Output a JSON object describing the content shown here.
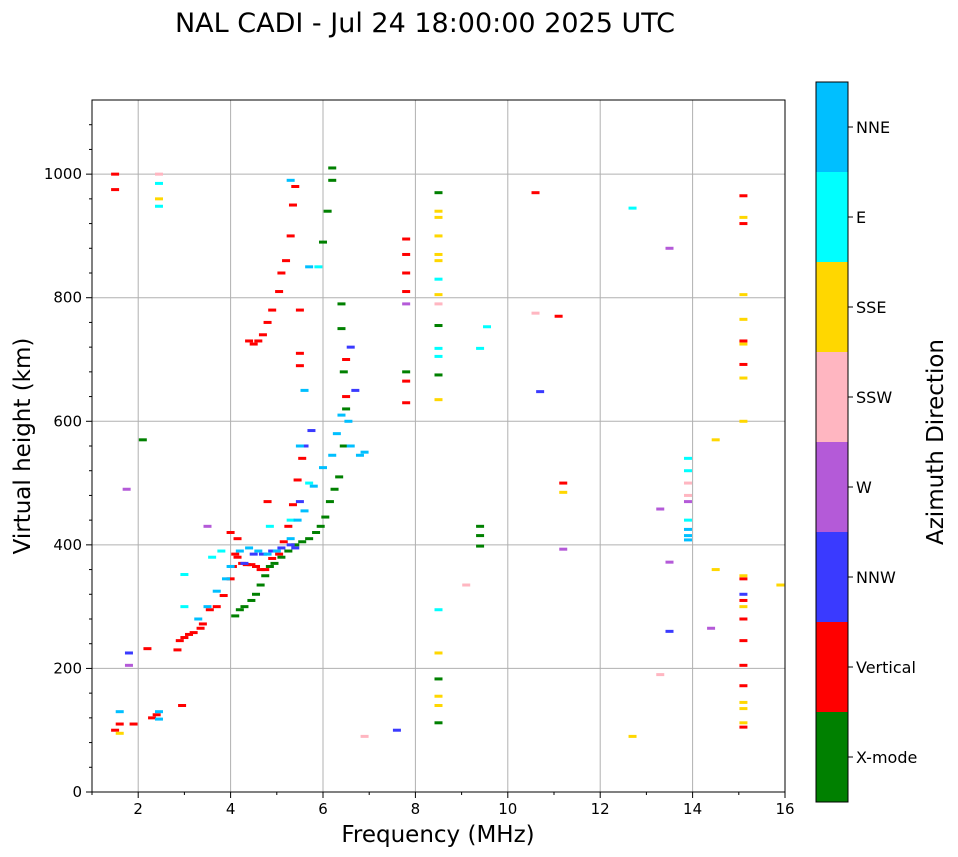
{
  "chart_data": {
    "type": "scatter",
    "title": "NAL CADI - Jul 24 18:00:00 2025 UTC",
    "xlabel": "Frequency (MHz)",
    "ylabel": "Virtual height (km)",
    "xlim": [
      1,
      16
    ],
    "ylim": [
      0,
      1120
    ],
    "x_ticks": [
      2,
      4,
      6,
      8,
      10,
      12,
      14,
      16
    ],
    "y_ticks": [
      0,
      200,
      400,
      600,
      800,
      1000
    ],
    "grid": true,
    "colorbar": {
      "label": "Azimuth Direction",
      "categories": [
        {
          "name": "X-mode",
          "color": "#008000"
        },
        {
          "name": "Vertical",
          "color": "#ff0000"
        },
        {
          "name": "NNW",
          "color": "#3a3aff"
        },
        {
          "name": "W",
          "color": "#b45ad8"
        },
        {
          "name": "SSW",
          "color": "#ffb6c1"
        },
        {
          "name": "SSE",
          "color": "#ffd700"
        },
        {
          "name": "E",
          "color": "#00ffff"
        },
        {
          "name": "NNE",
          "color": "#00bfff"
        }
      ]
    },
    "series": [
      {
        "name": "Vertical",
        "points": [
          [
            1.5,
            1000
          ],
          [
            1.5,
            975
          ],
          [
            1.5,
            100
          ],
          [
            1.6,
            110
          ],
          [
            1.9,
            110
          ],
          [
            2.3,
            120
          ],
          [
            2.4,
            125
          ],
          [
            2.2,
            232
          ],
          [
            2.85,
            230
          ],
          [
            2.9,
            245
          ],
          [
            3.0,
            250
          ],
          [
            3.1,
            255
          ],
          [
            3.2,
            258
          ],
          [
            3.35,
            265
          ],
          [
            3.4,
            272
          ],
          [
            3.55,
            295
          ],
          [
            3.7,
            300
          ],
          [
            3.85,
            318
          ],
          [
            4.0,
            345
          ],
          [
            4.05,
            365
          ],
          [
            4.1,
            385
          ],
          [
            4.15,
            380
          ],
          [
            4.25,
            370
          ],
          [
            4.35,
            368
          ],
          [
            4.45,
            368
          ],
          [
            4.55,
            365
          ],
          [
            4.65,
            360
          ],
          [
            4.75,
            360
          ],
          [
            4.9,
            378
          ],
          [
            5.05,
            385
          ],
          [
            5.15,
            405
          ],
          [
            5.25,
            430
          ],
          [
            5.35,
            465
          ],
          [
            5.45,
            505
          ],
          [
            5.55,
            540
          ],
          [
            4.4,
            730
          ],
          [
            4.5,
            725
          ],
          [
            4.6,
            730
          ],
          [
            4.7,
            740
          ],
          [
            4.8,
            760
          ],
          [
            4.9,
            780
          ],
          [
            5.05,
            810
          ],
          [
            5.1,
            840
          ],
          [
            5.2,
            860
          ],
          [
            5.3,
            900
          ],
          [
            5.35,
            950
          ],
          [
            5.4,
            980
          ],
          [
            5.5,
            710
          ],
          [
            5.5,
            690
          ],
          [
            5.5,
            780
          ],
          [
            6.5,
            640
          ],
          [
            6.5,
            700
          ],
          [
            7.8,
            630
          ],
          [
            7.8,
            665
          ],
          [
            7.8,
            810
          ],
          [
            7.8,
            840
          ],
          [
            7.8,
            870
          ],
          [
            7.8,
            895
          ],
          [
            10.6,
            970
          ],
          [
            11.1,
            770
          ],
          [
            11.2,
            500
          ],
          [
            15.1,
            965
          ],
          [
            15.1,
            920
          ],
          [
            15.1,
            730
          ],
          [
            15.1,
            692
          ],
          [
            15.1,
            345
          ],
          [
            15.1,
            310
          ],
          [
            15.1,
            280
          ],
          [
            15.1,
            245
          ],
          [
            15.1,
            205
          ],
          [
            15.1,
            172
          ],
          [
            15.1,
            105
          ],
          [
            4.8,
            470
          ],
          [
            4.0,
            420
          ],
          [
            4.15,
            410
          ],
          [
            2.95,
            140
          ]
        ]
      },
      {
        "name": "X-mode",
        "points": [
          [
            4.1,
            285
          ],
          [
            4.2,
            295
          ],
          [
            4.3,
            300
          ],
          [
            4.45,
            310
          ],
          [
            4.55,
            320
          ],
          [
            4.65,
            335
          ],
          [
            4.75,
            350
          ],
          [
            4.85,
            365
          ],
          [
            4.95,
            370
          ],
          [
            5.1,
            380
          ],
          [
            5.25,
            390
          ],
          [
            5.4,
            400
          ],
          [
            5.55,
            405
          ],
          [
            5.7,
            410
          ],
          [
            5.85,
            420
          ],
          [
            5.95,
            430
          ],
          [
            6.05,
            445
          ],
          [
            6.15,
            470
          ],
          [
            6.25,
            490
          ],
          [
            6.35,
            510
          ],
          [
            6.45,
            560
          ],
          [
            6.5,
            620
          ],
          [
            6.45,
            680
          ],
          [
            6.4,
            750
          ],
          [
            6.4,
            790
          ],
          [
            6.0,
            890
          ],
          [
            6.1,
            940
          ],
          [
            6.2,
            990
          ],
          [
            6.2,
            1010
          ],
          [
            2.1,
            570
          ],
          [
            7.8,
            680
          ],
          [
            8.5,
            970
          ],
          [
            8.5,
            755
          ],
          [
            8.5,
            675
          ],
          [
            8.5,
            183
          ],
          [
            8.5,
            112
          ],
          [
            9.4,
            430
          ],
          [
            9.4,
            415
          ],
          [
            9.4,
            398
          ]
        ]
      },
      {
        "name": "NNW",
        "points": [
          [
            1.8,
            225
          ],
          [
            4.3,
            370
          ],
          [
            4.5,
            385
          ],
          [
            4.7,
            385
          ],
          [
            4.9,
            390
          ],
          [
            5.1,
            395
          ],
          [
            5.3,
            400
          ],
          [
            5.5,
            470
          ],
          [
            5.6,
            560
          ],
          [
            5.75,
            585
          ],
          [
            6.6,
            720
          ],
          [
            6.7,
            650
          ],
          [
            10.7,
            648
          ],
          [
            13.5,
            260
          ],
          [
            15.1,
            320
          ],
          [
            7.6,
            100
          ],
          [
            5.4,
            395
          ]
        ]
      },
      {
        "name": "W",
        "points": [
          [
            1.8,
            205
          ],
          [
            1.75,
            490
          ],
          [
            3.5,
            430
          ],
          [
            7.8,
            790
          ],
          [
            11.2,
            393
          ],
          [
            13.3,
            458
          ],
          [
            13.5,
            880
          ],
          [
            13.5,
            372
          ],
          [
            14.4,
            265
          ],
          [
            13.9,
            470
          ]
        ]
      },
      {
        "name": "SSW",
        "points": [
          [
            2.45,
            1000
          ],
          [
            8.5,
            790
          ],
          [
            9.1,
            335
          ],
          [
            10.6,
            775
          ],
          [
            13.3,
            190
          ],
          [
            13.9,
            500
          ],
          [
            13.9,
            480
          ],
          [
            6.9,
            90
          ]
        ]
      },
      {
        "name": "SSE",
        "points": [
          [
            2.45,
            960
          ],
          [
            8.5,
            940
          ],
          [
            8.5,
            930
          ],
          [
            8.5,
            900
          ],
          [
            8.5,
            870
          ],
          [
            8.5,
            860
          ],
          [
            8.5,
            805
          ],
          [
            8.5,
            635
          ],
          [
            8.5,
            225
          ],
          [
            8.5,
            155
          ],
          [
            8.5,
            140
          ],
          [
            11.2,
            485
          ],
          [
            12.7,
            90
          ],
          [
            14.5,
            570
          ],
          [
            14.5,
            360
          ],
          [
            15.1,
            930
          ],
          [
            15.1,
            805
          ],
          [
            15.1,
            765
          ],
          [
            15.1,
            725
          ],
          [
            15.1,
            670
          ],
          [
            15.1,
            600
          ],
          [
            15.1,
            350
          ],
          [
            15.1,
            300
          ],
          [
            15.1,
            145
          ],
          [
            15.1,
            135
          ],
          [
            15.1,
            112
          ],
          [
            15.9,
            335
          ],
          [
            1.6,
            95
          ]
        ]
      },
      {
        "name": "E",
        "points": [
          [
            2.45,
            985
          ],
          [
            2.45,
            948
          ],
          [
            3.0,
            352
          ],
          [
            3.0,
            300
          ],
          [
            3.6,
            380
          ],
          [
            3.8,
            390
          ],
          [
            5.7,
            500
          ],
          [
            5.9,
            850
          ],
          [
            8.5,
            830
          ],
          [
            8.5,
            718
          ],
          [
            8.5,
            705
          ],
          [
            8.5,
            295
          ],
          [
            9.55,
            753
          ],
          [
            9.4,
            718
          ],
          [
            12.7,
            945
          ],
          [
            13.9,
            540
          ],
          [
            13.9,
            520
          ],
          [
            13.9,
            440
          ],
          [
            5.3,
            440
          ],
          [
            4.85,
            430
          ]
        ]
      },
      {
        "name": "NNE",
        "points": [
          [
            1.6,
            130
          ],
          [
            2.45,
            130
          ],
          [
            2.45,
            118
          ],
          [
            3.3,
            280
          ],
          [
            3.5,
            300
          ],
          [
            3.7,
            325
          ],
          [
            3.9,
            345
          ],
          [
            4.0,
            365
          ],
          [
            4.2,
            390
          ],
          [
            4.4,
            395
          ],
          [
            4.6,
            390
          ],
          [
            4.8,
            385
          ],
          [
            5.0,
            390
          ],
          [
            5.3,
            410
          ],
          [
            5.45,
            440
          ],
          [
            5.6,
            455
          ],
          [
            5.8,
            495
          ],
          [
            6.0,
            525
          ],
          [
            6.2,
            545
          ],
          [
            6.3,
            580
          ],
          [
            6.4,
            610
          ],
          [
            6.55,
            600
          ],
          [
            6.6,
            560
          ],
          [
            6.8,
            545
          ],
          [
            6.9,
            550
          ],
          [
            5.3,
            990
          ],
          [
            5.7,
            850
          ],
          [
            13.9,
            425
          ],
          [
            13.9,
            415
          ],
          [
            13.9,
            408
          ],
          [
            5.6,
            650
          ],
          [
            5.5,
            560
          ]
        ]
      }
    ]
  }
}
